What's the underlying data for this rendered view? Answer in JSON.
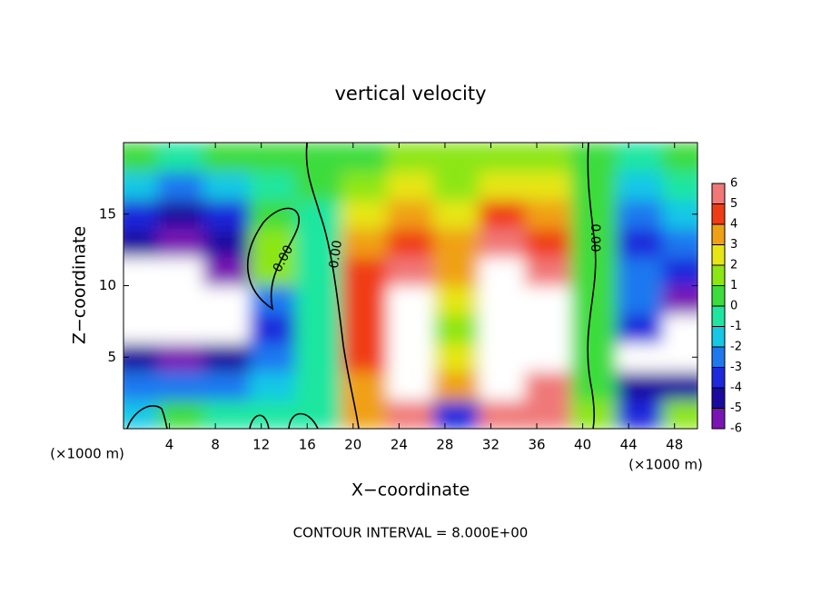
{
  "chart_data": {
    "type": "contour",
    "title": "vertical velocity",
    "x_label": "X−coordinate",
    "y_label": "Z−coordinate",
    "x_unit_label": "(×1000 m)",
    "footer": "CONTOUR INTERVAL = 8.000E+00",
    "contour_labels": [
      "0.00",
      "0.00",
      "0.00"
    ],
    "xlim": [
      0,
      50
    ],
    "ylim": [
      0,
      20
    ],
    "xticks": [
      4,
      8,
      12,
      16,
      20,
      24,
      28,
      32,
      36,
      40,
      44,
      48
    ],
    "yticks": [
      5,
      10,
      15
    ],
    "x": [
      1,
      5,
      9,
      13,
      17,
      21,
      25,
      29,
      33,
      37,
      41,
      45,
      49
    ],
    "z": [
      1,
      3,
      5,
      7,
      9,
      11,
      13,
      15,
      17,
      19
    ],
    "values": [
      [
        -2,
        0,
        -1,
        -1,
        -1,
        3,
        5,
        -4,
        5,
        5,
        1,
        -4,
        1
      ],
      [
        -3,
        -3,
        -3,
        -2,
        -1,
        3,
        8,
        3,
        8,
        6,
        0,
        -5,
        -5
      ],
      [
        -5,
        -6,
        -5,
        -3,
        -1,
        4,
        8,
        2,
        8,
        7,
        0,
        -7,
        -7
      ],
      [
        -8,
        -9,
        -7,
        -4,
        -1,
        4,
        8,
        1,
        8,
        7,
        0,
        -4,
        -8
      ],
      [
        -8,
        -9,
        -8,
        -3,
        -1,
        4,
        8,
        2,
        8,
        7,
        0,
        -3,
        -6
      ],
      [
        -8,
        -8,
        -6,
        1,
        -1,
        4,
        6,
        3,
        8,
        6,
        0,
        -3,
        -4
      ],
      [
        -5,
        -6,
        -5,
        1,
        -1,
        3,
        4,
        3,
        5,
        4,
        0,
        -4,
        -3
      ],
      [
        -4,
        -5,
        -4,
        0,
        -1,
        2,
        3,
        2,
        4,
        3,
        0,
        -3,
        -2
      ],
      [
        -2,
        -3,
        -2,
        -1,
        0,
        1,
        2,
        1,
        2,
        2,
        0,
        -2,
        -1
      ],
      [
        0,
        -1,
        0,
        0,
        0,
        0,
        1,
        1,
        1,
        1,
        0,
        -1,
        0
      ]
    ],
    "colorbar": {
      "ticks": [
        -6,
        -5,
        -4,
        -3,
        -2,
        -1,
        0,
        1,
        2,
        3,
        4,
        5,
        6
      ],
      "colors": [
        "#7a14b4",
        "#1a0aa0",
        "#1e28dc",
        "#1e78f0",
        "#14c8e6",
        "#1ee6a0",
        "#3cdc3c",
        "#8ce614",
        "#e6e614",
        "#f0a014",
        "#f03c14",
        "#f07878"
      ]
    }
  }
}
